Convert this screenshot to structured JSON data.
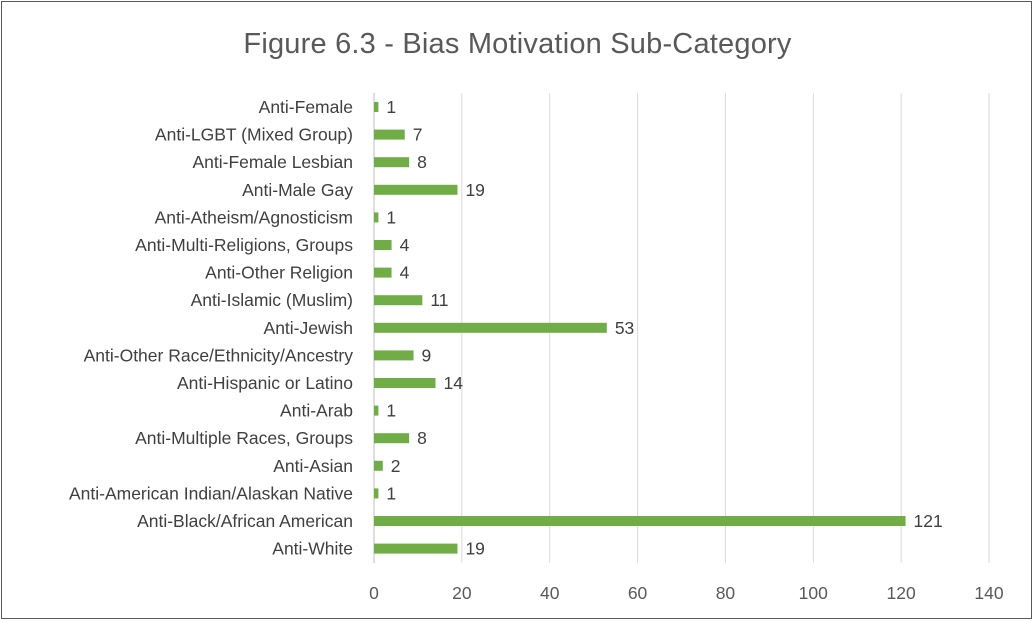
{
  "chart_data": {
    "type": "bar",
    "orientation": "horizontal",
    "title": "Figure 6.3 - Bias Motivation Sub-Category",
    "xlabel": "",
    "ylabel": "",
    "xlim": [
      0,
      140
    ],
    "xticks": [
      0,
      20,
      40,
      60,
      80,
      100,
      120,
      140
    ],
    "grid": true,
    "legend": "none",
    "bar_color": "#70ad47",
    "categories": [
      "Anti-Female",
      "Anti-LGBT (Mixed Group)",
      "Anti-Female Lesbian",
      "Anti-Male Gay",
      "Anti-Atheism/Agnosticism",
      "Anti-Multi-Religions, Groups",
      "Anti-Other Religion",
      "Anti-Islamic (Muslim)",
      "Anti-Jewish",
      "Anti-Other Race/Ethnicity/Ancestry",
      "Anti-Hispanic or Latino",
      "Anti-Arab",
      "Anti-Multiple Races, Groups",
      "Anti-Asian",
      "Anti-American Indian/Alaskan Native",
      "Anti-Black/African American",
      "Anti-White"
    ],
    "values": [
      1,
      7,
      8,
      19,
      1,
      4,
      4,
      11,
      53,
      9,
      14,
      1,
      8,
      2,
      1,
      121,
      19
    ]
  }
}
